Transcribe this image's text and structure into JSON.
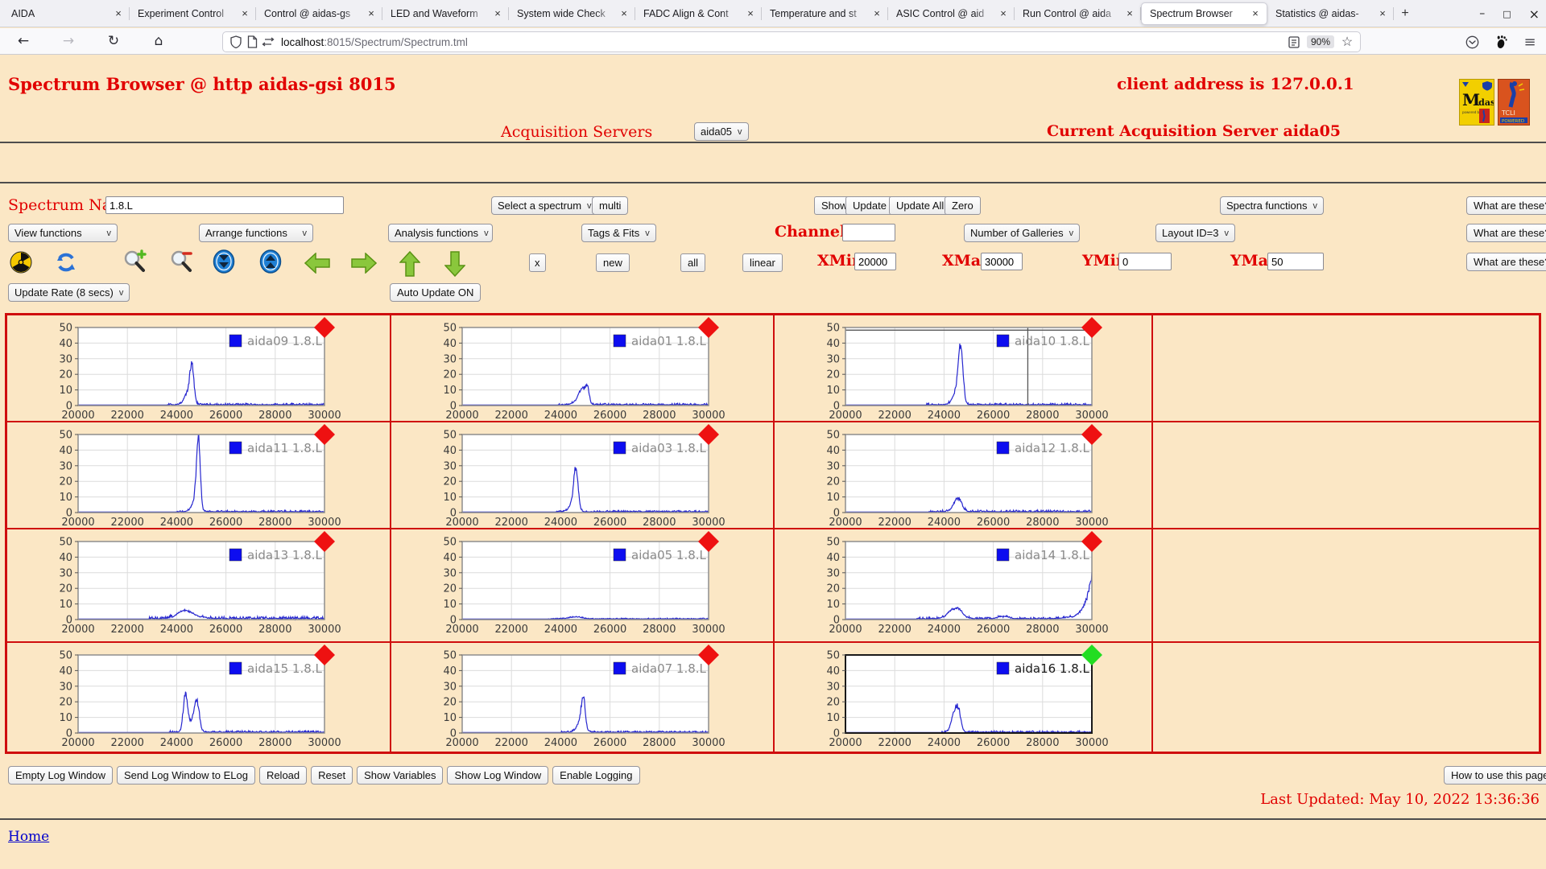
{
  "browser": {
    "tabs": [
      {
        "title": "AIDA",
        "active": false
      },
      {
        "title": "Experiment Control",
        "active": false
      },
      {
        "title": "Control @ aidas-gs",
        "active": false
      },
      {
        "title": "LED and Waveform",
        "active": false
      },
      {
        "title": "System wide Check",
        "active": false
      },
      {
        "title": "FADC Align & Cont",
        "active": false
      },
      {
        "title": "Temperature and st",
        "active": false
      },
      {
        "title": "ASIC Control @ aid",
        "active": false
      },
      {
        "title": "Run Control @ aida",
        "active": false
      },
      {
        "title": "Spectrum Browser",
        "active": true
      },
      {
        "title": "Statistics @ aidas-",
        "active": false
      }
    ],
    "new_tab": "+",
    "window_controls": {
      "minimize": "–",
      "maximize": "□",
      "close": "×"
    },
    "nav": {
      "back": "←",
      "forward": "→",
      "reload": "↻",
      "home": "⌂",
      "url_host": "localhost",
      "url_rest": ":8015/Spectrum/Spectrum.tml",
      "zoom_badge": "90%",
      "bookmark_star": "☆",
      "menu": "≡"
    }
  },
  "header": {
    "title": "Spectrum Browser @ http aidas-gsi 8015",
    "client": "client address is 127.0.0.1",
    "midas_logo_text": "Midas",
    "tcl_logo_text": "TCL"
  },
  "acquisition": {
    "label": "Acquisition Servers",
    "server": "aida05",
    "current": "Current Acquisition Server aida05"
  },
  "controls": {
    "spectrum_name_label": "Spectrum Name:",
    "spectrum_name_value": "1.8.L",
    "select_spectrum": "Select a spectrum",
    "multi": "multi",
    "show": "Show",
    "update": "Update",
    "update_all": "Update All",
    "zero": "Zero",
    "spectra_functions": "Spectra functions",
    "what_are_these": "What are these?",
    "view_functions": "View functions",
    "arrange_functions": "Arrange functions",
    "analysis_functions": "Analysis functions",
    "tags_fits": "Tags & Fits",
    "channel_label": "Channel:",
    "channel_value": "",
    "number_of_galleries": "Number of Galleries",
    "layout_id": "Layout ID=3",
    "x_button": "x",
    "new": "new",
    "all": "all",
    "linear": "linear",
    "xmin_label": "XMin",
    "xmin": "20000",
    "xmax_label": "XMax",
    "xmax": "30000",
    "ymin_label": "YMin",
    "ymin": "0",
    "ymax_label": "YMax",
    "ymax": "50",
    "update_rate": "Update Rate (8 secs)",
    "auto_update": "Auto Update ON",
    "icons": [
      "radioactive-icon",
      "refresh-icon",
      "zoom-in-icon",
      "zoom-out-icon",
      "shift-down-icon",
      "shift-up-icon",
      "arrow-left-icon",
      "arrow-right-icon",
      "arrow-up-icon",
      "arrow-down-icon"
    ]
  },
  "footer": {
    "buttons": [
      "Empty Log Window",
      "Send Log Window to ELog",
      "Reload",
      "Reset",
      "Show Variables",
      "Show Log Window",
      "Enable Logging"
    ],
    "help_button": "How to use this page",
    "last_updated": "Last Updated: May 10, 2022 13:36:36",
    "home_link": "Home"
  },
  "chart_data": {
    "type": "line",
    "xlim": [
      20000,
      30000
    ],
    "ylim": [
      0,
      50
    ],
    "xticks": [
      20000,
      22000,
      24000,
      26000,
      28000,
      30000
    ],
    "yticks": [
      0,
      10,
      20,
      30,
      40,
      50
    ],
    "grid": true,
    "legend_position": "top-right",
    "line_color": "#2727cf",
    "legend_square_color": "#0d0df0",
    "marker_red": "#ee1111",
    "marker_green": "#22dd22",
    "spectra": [
      {
        "name": "aida09",
        "legend": "aida09 1.8.L",
        "row": 0,
        "col": 0,
        "marker": "red",
        "peaks": [
          [
            24620,
            23,
            85
          ],
          [
            24450,
            8,
            150
          ]
        ],
        "noise_from": 23600,
        "noise_amp": 1.0,
        "seed": 9
      },
      {
        "name": "aida01",
        "legend": "aida01 1.8.L",
        "row": 0,
        "col": 1,
        "marker": "red",
        "peaks": [
          [
            25080,
            12,
            80
          ],
          [
            24880,
            9,
            110
          ],
          [
            24700,
            4,
            160
          ]
        ],
        "noise_from": 23900,
        "noise_amp": 1.0,
        "seed": 1
      },
      {
        "name": "aida10",
        "legend": "aida10 1.8.L",
        "row": 0,
        "col": 2,
        "marker": "red",
        "peaks": [
          [
            24680,
            36,
            90
          ],
          [
            24520,
            10,
            160
          ]
        ],
        "noise_from": 23300,
        "noise_amp": 1.0,
        "seed": 10,
        "crosshair": {
          "x": 27400,
          "y": 48.3
        }
      },
      {
        "name": "aida11",
        "legend": "aida11 1.8.L",
        "row": 1,
        "col": 0,
        "marker": "red",
        "peaks": [
          [
            24880,
            47,
            75
          ],
          [
            24760,
            8,
            150
          ]
        ],
        "noise_from": 24000,
        "noise_amp": 1.0,
        "seed": 11
      },
      {
        "name": "aida03",
        "legend": "aida03 1.8.L",
        "row": 1,
        "col": 1,
        "marker": "red",
        "peaks": [
          [
            24620,
            26,
            85
          ],
          [
            24500,
            7,
            150
          ]
        ],
        "noise_from": 23800,
        "noise_amp": 0.9,
        "seed": 3
      },
      {
        "name": "aida12",
        "legend": "aida12 1.8.L",
        "row": 1,
        "col": 2,
        "marker": "red",
        "peaks": [
          [
            24500,
            7,
            160
          ],
          [
            24650,
            4,
            120
          ]
        ],
        "noise_from": 23400,
        "noise_amp": 1.2,
        "seed": 12
      },
      {
        "name": "aida13",
        "legend": "aida13 1.8.L",
        "row": 2,
        "col": 0,
        "marker": "red",
        "peaks": [
          [
            24500,
            4,
            350
          ],
          [
            24200,
            3,
            250
          ]
        ],
        "noise_from": 22900,
        "noise_amp": 1.6,
        "seed": 13
      },
      {
        "name": "aida05",
        "legend": "aida05 1.8.L",
        "row": 2,
        "col": 1,
        "marker": "red",
        "peaks": [
          [
            24600,
            1.2,
            250
          ]
        ],
        "noise_from": 23500,
        "noise_amp": 0.6,
        "seed": 5
      },
      {
        "name": "aida14",
        "legend": "aida14 1.8.L",
        "row": 2,
        "col": 2,
        "marker": "red",
        "peaks": [
          [
            24350,
            6,
            230
          ],
          [
            24650,
            4,
            180
          ],
          [
            26400,
            1.5,
            200
          ]
        ],
        "tail": {
          "tau": 280,
          "h": 30
        },
        "noise_from": 22900,
        "noise_amp": 1.1,
        "seed": 14
      },
      {
        "name": "aida15",
        "legend": "aida15 1.8.L",
        "row": 3,
        "col": 0,
        "marker": "red",
        "peaks": [
          [
            24350,
            24,
            85
          ],
          [
            24820,
            19,
            100
          ],
          [
            24600,
            7,
            180
          ]
        ],
        "noise_from": 23700,
        "noise_amp": 1.1,
        "seed": 15
      },
      {
        "name": "aida07",
        "legend": "aida07 1.8.L",
        "row": 3,
        "col": 1,
        "marker": "red",
        "peaks": [
          [
            24920,
            21,
            80
          ],
          [
            24780,
            7,
            140
          ]
        ],
        "noise_from": 24000,
        "noise_amp": 0.9,
        "seed": 7
      },
      {
        "name": "aida16",
        "legend": "aida16 1.8.L",
        "row": 3,
        "col": 2,
        "marker": "green",
        "highlight": true,
        "peaks": [
          [
            24480,
            13,
            110
          ],
          [
            24620,
            9,
            90
          ],
          [
            24330,
            5,
            110
          ]
        ],
        "noise_from": 23900,
        "noise_amp": 1.0,
        "seed": 16
      }
    ]
  },
  "colors": {
    "page_bg": "#fbe7c5",
    "accent_red": "#e10000",
    "table_border": "#cf0e0e"
  }
}
